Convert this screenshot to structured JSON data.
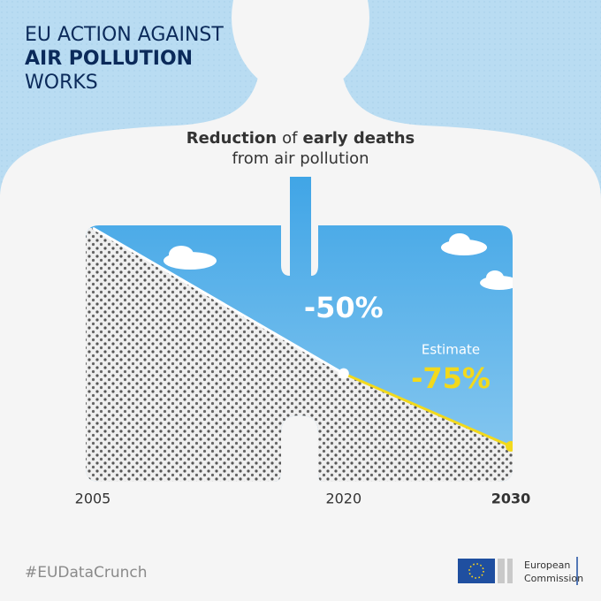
{
  "chart_data": {
    "type": "line",
    "title": [
      "EU ACTION AGAINST",
      "AIR POLLUTION",
      "WORKS"
    ],
    "subtitle": [
      {
        "text": "Reduction",
        "bold": true
      },
      {
        "text": "of",
        "bold": false
      },
      {
        "text": "early deaths",
        "bold": true
      }
    ],
    "subtitle_line2": "from air pollution",
    "x": [
      2005,
      2020,
      2030
    ],
    "values": [
      0,
      -50,
      -75
    ],
    "value_labels": [
      null,
      "-50%",
      "-75%"
    ],
    "annotation": "Estimate",
    "segment_colors": [
      "#ffffff",
      "#f2d91c"
    ],
    "xlim": [
      2005,
      2030
    ],
    "ylim": [
      -75,
      0
    ]
  },
  "footer": {
    "hashtag": "#EUDataCrunch",
    "logo": [
      "European",
      "Commission"
    ]
  }
}
